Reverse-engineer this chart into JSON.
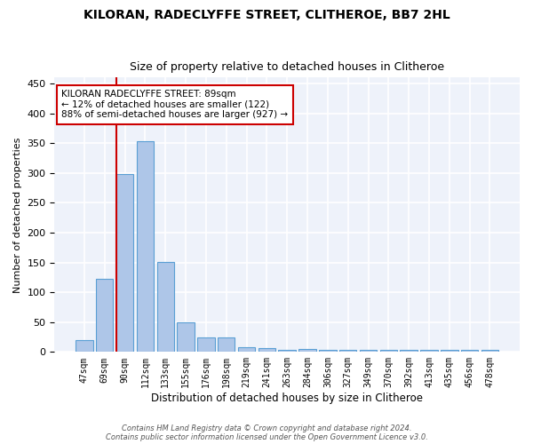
{
  "title": "KILORAN, RADECLYFFE STREET, CLITHEROE, BB7 2HL",
  "subtitle": "Size of property relative to detached houses in Clitheroe",
  "xlabel": "Distribution of detached houses by size in Clitheroe",
  "ylabel": "Number of detached properties",
  "bar_values": [
    20,
    122,
    298,
    354,
    151,
    50,
    24,
    24,
    8,
    6,
    4,
    5,
    4,
    3,
    4,
    3,
    4,
    3,
    4,
    3,
    4
  ],
  "bar_labels": [
    "47sqm",
    "69sqm",
    "90sqm",
    "112sqm",
    "133sqm",
    "155sqm",
    "176sqm",
    "198sqm",
    "219sqm",
    "241sqm",
    "263sqm",
    "284sqm",
    "306sqm",
    "327sqm",
    "349sqm",
    "370sqm",
    "392sqm",
    "413sqm",
    "435sqm",
    "456sqm",
    "478sqm"
  ],
  "bar_color": "#aec6e8",
  "bar_edge_color": "#5a9fd4",
  "vline_index": 2,
  "vline_color": "#cc0000",
  "annotation_text": "KILORAN RADECLYFFE STREET: 89sqm\n← 12% of detached houses are smaller (122)\n88% of semi-detached houses are larger (927) →",
  "annotation_box_color": "#ffffff",
  "annotation_box_edge": "#cc0000",
  "ylim": [
    0,
    460
  ],
  "yticks": [
    0,
    50,
    100,
    150,
    200,
    250,
    300,
    350,
    400,
    450
  ],
  "background_color": "#eef2fa",
  "grid_color": "#ffffff",
  "footer1": "Contains HM Land Registry data © Crown copyright and database right 2024.",
  "footer2": "Contains public sector information licensed under the Open Government Licence v3.0."
}
